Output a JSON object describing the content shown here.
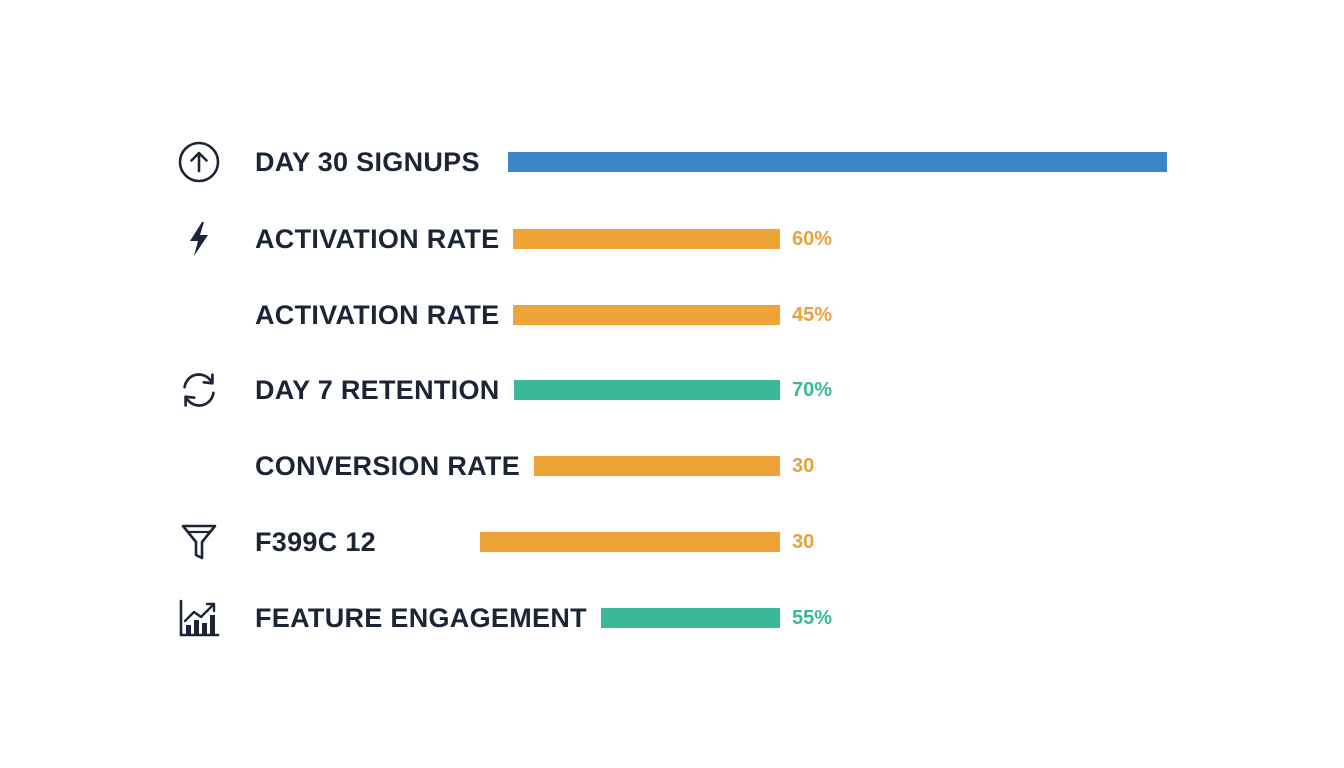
{
  "chart_data": {
    "type": "bar",
    "orientation": "horizontal",
    "title": "",
    "xlabel": "",
    "ylabel": "",
    "xlim": [
      0,
      100
    ],
    "grid": false,
    "legend": "none",
    "categories": [
      "DAY 30 SIGNUPS",
      "ACTIVATION RATE",
      "ACTIVATION RATE",
      "DAY 7 RETENTION",
      "CONVERSION RATE",
      "F399C 12",
      "FEATURE ENGAGEMENT"
    ],
    "values": [
      100,
      60,
      45,
      70,
      30,
      30,
      55
    ],
    "value_labels": [
      "",
      "60%",
      "45%",
      "70%",
      "30",
      "30",
      "55%"
    ],
    "colors": [
      "#3b86c8",
      "#efa43a",
      "#efa43a",
      "#3bb89a",
      "#efa43a",
      "#efa43a",
      "#3bb89a"
    ],
    "label_colors": [
      "#3b86c8",
      "#e8a13f",
      "#e8a13f",
      "#3bb89a",
      "#e8a13f",
      "#e8a13f",
      "#3bb89a"
    ],
    "icons": [
      "arrow-up-circle-icon",
      "lightning-icon",
      "",
      "refresh-icon",
      "",
      "funnel-icon",
      "growth-chart-icon"
    ]
  }
}
